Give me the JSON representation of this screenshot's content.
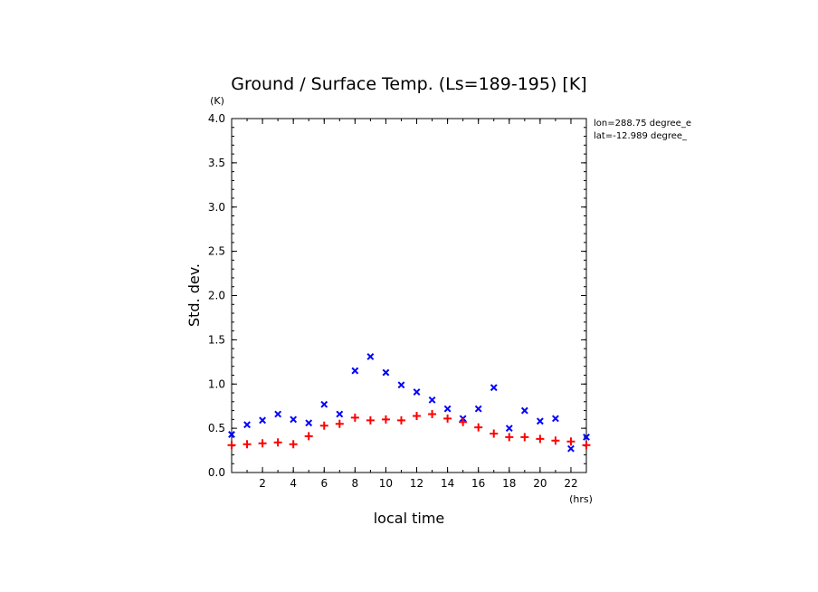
{
  "chart_data": {
    "type": "scatter",
    "title": "Ground / Surface Temp. (Ls=189-195) [K]",
    "xlabel": "local time",
    "ylabel": "Std. dev.",
    "x_unit": "(hrs)",
    "y_unit": "(K)",
    "xlim": [
      0,
      23
    ],
    "ylim": [
      0,
      4.0
    ],
    "x_ticks": [
      "2",
      "4",
      "6",
      "8",
      "10",
      "12",
      "14",
      "16",
      "18",
      "20",
      "22"
    ],
    "y_ticks": [
      "0.0",
      "0.5",
      "1.0",
      "1.5",
      "2.0",
      "2.5",
      "3.0",
      "3.5",
      "4.0"
    ],
    "annotations": [
      "lon=288.75 degree_e",
      "lat=-12.989 degree_"
    ],
    "series": [
      {
        "marker": "x",
        "color": "#0000ff",
        "x": [
          0,
          1,
          2,
          3,
          4,
          5,
          6,
          7,
          8,
          9,
          10,
          11,
          12,
          13,
          14,
          15,
          16,
          17,
          18,
          19,
          20,
          21,
          22,
          23
        ],
        "y": [
          0.43,
          0.54,
          0.59,
          0.66,
          0.6,
          0.56,
          0.77,
          0.66,
          1.15,
          1.31,
          1.13,
          0.99,
          0.91,
          0.82,
          0.72,
          0.61,
          0.72,
          0.96,
          0.5,
          0.7,
          0.58,
          0.61,
          0.27,
          0.4
        ]
      },
      {
        "marker": "+",
        "color": "#ff0000",
        "x": [
          0,
          1,
          2,
          3,
          4,
          5,
          6,
          7,
          8,
          9,
          10,
          11,
          12,
          13,
          14,
          15,
          16,
          17,
          18,
          19,
          20,
          21,
          22,
          23
        ],
        "y": [
          0.31,
          0.32,
          0.33,
          0.34,
          0.32,
          0.41,
          0.53,
          0.55,
          0.62,
          0.59,
          0.6,
          0.59,
          0.64,
          0.66,
          0.61,
          0.57,
          0.51,
          0.44,
          0.4,
          0.4,
          0.38,
          0.36,
          0.35,
          0.31
        ]
      }
    ]
  }
}
